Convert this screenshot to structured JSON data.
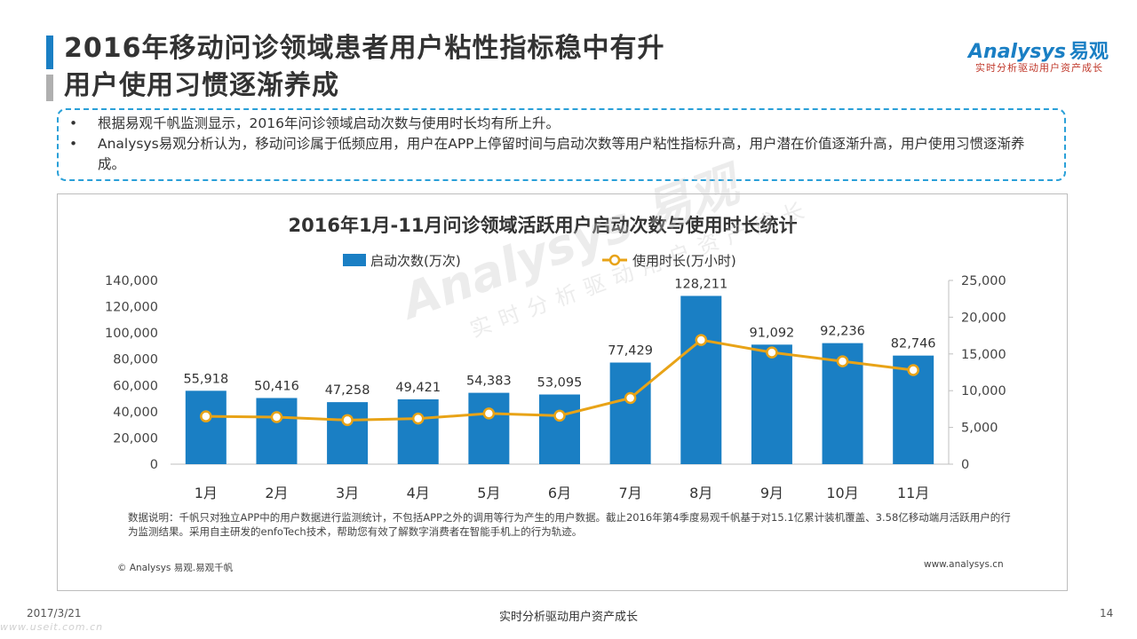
{
  "header": {
    "title_line1": "2016年移动问诊领域患者用户粘性指标稳中有升",
    "title_line2": "用户使用习惯逐渐养成"
  },
  "logo": {
    "brand": "Analysys",
    "brand_cn": "易观",
    "slogan": "实时分析驱动用户资产成长"
  },
  "summary": {
    "items": [
      "根据易观千帆监测显示，2016年问诊领域启动次数与使用时长均有所上升。",
      "Analysys易观分析认为，移动问诊属于低频应用，用户在APP上停留时间与启动次数等用户粘性指标升高，用户潜在价值逐渐升高，用户使用习惯逐渐养成。"
    ]
  },
  "chart_data": {
    "type": "bar",
    "title": "2016年1月-11月问诊领域活跃用户启动次数与使用时长统计",
    "categories": [
      "1月",
      "2月",
      "3月",
      "4月",
      "5月",
      "6月",
      "7月",
      "8月",
      "9月",
      "10月",
      "11月"
    ],
    "series": [
      {
        "name": "启动次数(万次)",
        "type": "bar",
        "axis": "left",
        "color": "#1a7fc4",
        "values": [
          55918,
          50416,
          47258,
          49421,
          54383,
          53095,
          77429,
          128211,
          91092,
          92236,
          82746
        ],
        "labels": [
          "55,918",
          "50,416",
          "47,258",
          "49,421",
          "54,383",
          "53,095",
          "77,429",
          "128,211",
          "91,092",
          "92,236",
          "82,746"
        ]
      },
      {
        "name": "使用时长(万小时)",
        "type": "line",
        "axis": "right",
        "color": "#e8a317",
        "values": [
          6500,
          6400,
          6000,
          6200,
          6900,
          6600,
          9000,
          16900,
          15200,
          14000,
          12800
        ]
      }
    ],
    "y_left": {
      "min": 0,
      "max": 140000,
      "ticks": [
        "0",
        "20,000",
        "40,000",
        "60,000",
        "80,000",
        "100,000",
        "120,000",
        "140,000"
      ]
    },
    "y_right": {
      "min": 0,
      "max": 25000,
      "ticks": [
        "0",
        "5,000",
        "10,000",
        "15,000",
        "20,000",
        "25,000"
      ]
    },
    "legend_position": "top",
    "grid": false
  },
  "notes": {
    "data_note": "数据说明：千帆只对独立APP中的用户数据进行监测统计，不包括APP之外的调用等行为产生的用户数据。截止2016年第4季度易观千帆基于对15.1亿累计装机覆盖、3.58亿移动端月活跃用户的行为监测结果。采用自主研发的enfoTech技术，帮助您有效了解数字消费者在智能手机上的行为轨迹。",
    "source": "© Analysys 易观.易观千帆",
    "website": "www.analysys.cn"
  },
  "footer": {
    "date": "2017/3/21",
    "center": "实时分析驱动用户资产成长",
    "page": "14"
  },
  "corner_watermark": "www.useit.com.cn"
}
